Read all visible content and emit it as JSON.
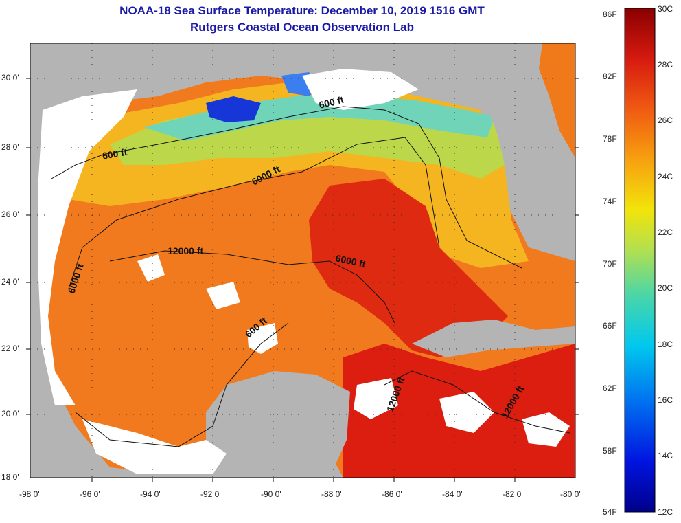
{
  "title": {
    "line1": "NOAA-18 Sea Surface Temperature:  December 10, 2019 1516 GMT",
    "line2": "Rutgers Coastal Ocean Observation Lab"
  },
  "axes": {
    "lat_labels": [
      "30 0'",
      "28 0'",
      "26 0'",
      "24 0'",
      "22 0'",
      "20 0'",
      "18 0'"
    ],
    "lon_labels": [
      "-98 0'",
      "-96 0'",
      "-94 0'",
      "-92 0'",
      "-90 0'",
      "-88 0'",
      "-86 0'",
      "-84 0'",
      "-82 0'",
      "-80 0'"
    ]
  },
  "contour_labels": [
    "600 ft",
    "600 ft",
    "6000 ft",
    "12000 ft",
    "6000 ft",
    "6000 ft",
    "600 ft",
    "12000 ft",
    "12000 ft"
  ],
  "colorbar": {
    "fahrenheit": [
      "86F",
      "82F",
      "78F",
      "74F",
      "70F",
      "66F",
      "62F",
      "58F",
      "54F"
    ],
    "celsius": [
      "30C",
      "28C",
      "26C",
      "24C",
      "22C",
      "20C",
      "18C",
      "16C",
      "14C",
      "12C"
    ]
  },
  "colors": {
    "land": "#b4b4b4",
    "cloud": "#ffffff",
    "title": "#1a1aa6"
  }
}
